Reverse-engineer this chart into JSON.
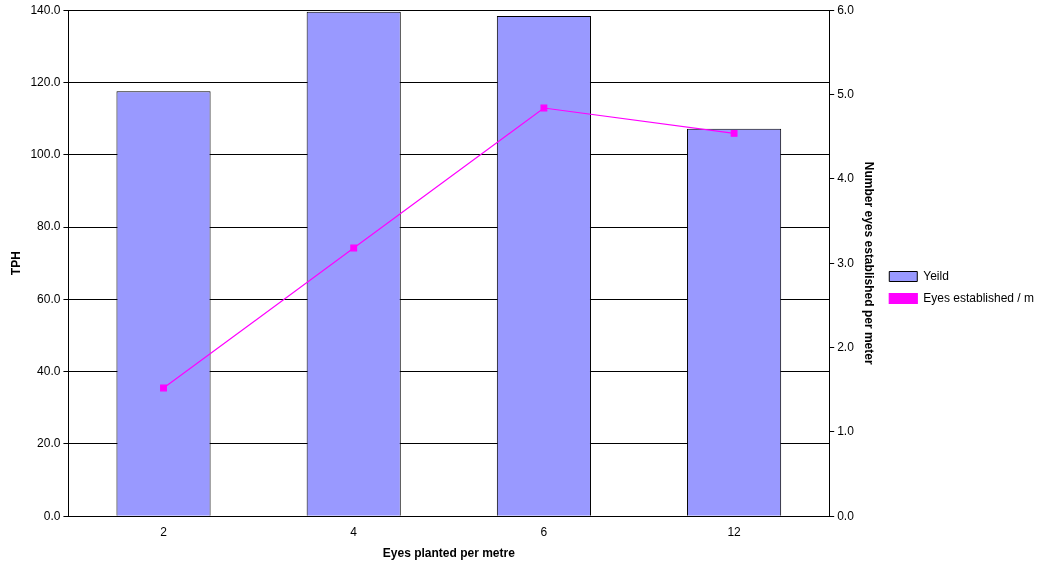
{
  "chart_data": {
    "type": "bar",
    "xlabel": "Eyes planted per metre",
    "ylabel": "TPH",
    "y2label": "Number eyes established per meter",
    "categories": [
      "2",
      "4",
      "6",
      "12"
    ],
    "series": [
      {
        "name": "Yeild",
        "color": "#9999ff",
        "values": [
          117.6,
          139.6,
          138.4,
          107.2
        ]
      },
      {
        "name": "Eyes established / m",
        "type": "line",
        "axis": "y2",
        "color": "#ff00ff",
        "marker": "square",
        "values": [
          1.52,
          3.18,
          4.84,
          4.54
        ]
      }
    ],
    "ylim": [
      0,
      140
    ],
    "yticks": [
      {
        "value": 0,
        "label": "0.0"
      },
      {
        "value": 20,
        "label": "20.0"
      },
      {
        "value": 40,
        "label": "40.0"
      },
      {
        "value": 60,
        "label": "60.0"
      },
      {
        "value": 80,
        "label": "80.0"
      },
      {
        "value": 100,
        "label": "100.0"
      },
      {
        "value": 120,
        "label": "120.0"
      },
      {
        "value": 140,
        "label": "140.0"
      }
    ],
    "y2lim": [
      0,
      6
    ],
    "y2ticks": [
      {
        "value": 0,
        "label": "0.0"
      },
      {
        "value": 1,
        "label": "1.0"
      },
      {
        "value": 2,
        "label": "2.0"
      },
      {
        "value": 3,
        "label": "3.0"
      },
      {
        "value": 4,
        "label": "4.0"
      },
      {
        "value": 5,
        "label": "5.0"
      },
      {
        "value": 6,
        "label": "6.0"
      }
    ],
    "grid": "y",
    "legend": "right"
  }
}
